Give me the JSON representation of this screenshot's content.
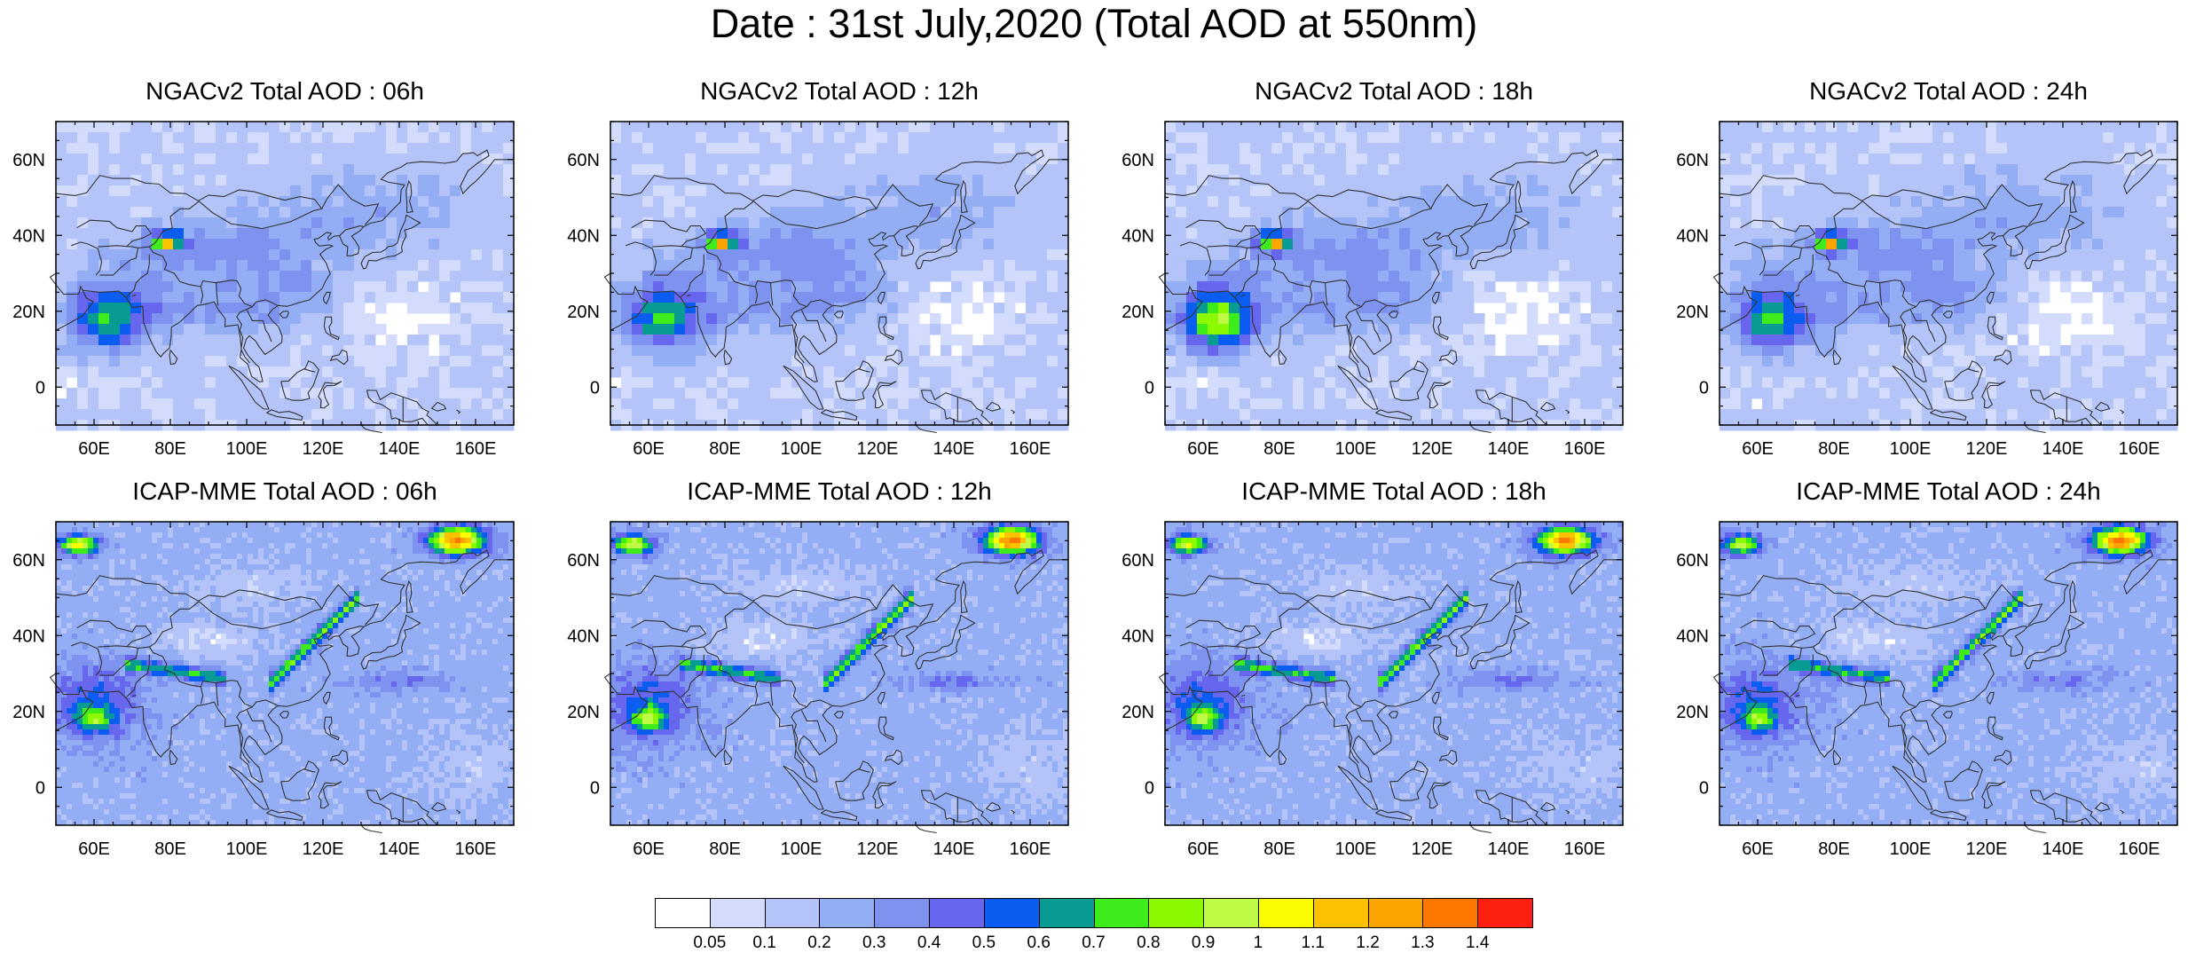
{
  "title": "Date : 31st July,2020 (Total AOD at 550nm)",
  "panels": [
    {
      "label": "NGACv2 Total AOD : 06h",
      "model": "NGACv2"
    },
    {
      "label": "NGACv2 Total AOD : 12h",
      "model": "NGACv2"
    },
    {
      "label": "NGACv2 Total AOD : 18h",
      "model": "NGACv2"
    },
    {
      "label": "NGACv2 Total AOD : 24h",
      "model": "NGACv2"
    },
    {
      "label": "ICAP-MME Total AOD : 06h",
      "model": "ICAP-MME"
    },
    {
      "label": "ICAP-MME Total AOD : 12h",
      "model": "ICAP-MME"
    },
    {
      "label": "ICAP-MME Total AOD : 18h",
      "model": "ICAP-MME"
    },
    {
      "label": "ICAP-MME Total AOD : 24h",
      "model": "ICAP-MME"
    }
  ],
  "map": {
    "lon_range": [
      50,
      170
    ],
    "lat_range": [
      -10,
      70
    ],
    "lon_ticks": [
      "60E",
      "80E",
      "100E",
      "120E",
      "140E",
      "160E"
    ],
    "lon_tick_values": [
      60,
      80,
      100,
      120,
      140,
      160
    ],
    "lat_ticks": [
      "0",
      "20N",
      "40N",
      "60N"
    ],
    "lat_tick_values": [
      0,
      20,
      40,
      60
    ]
  },
  "colorbar": {
    "levels": [
      "0.05",
      "0.1",
      "0.2",
      "0.3",
      "0.4",
      "0.5",
      "0.6",
      "0.7",
      "0.8",
      "0.9",
      "1",
      "1.1",
      "1.2",
      "1.3",
      "1.4"
    ],
    "colors": [
      "#ffffff",
      "#d3dcfc",
      "#b4c4f8",
      "#93aef5",
      "#7e93f0",
      "#6666ee",
      "#0a5df0",
      "#079b93",
      "#3fec1b",
      "#8bfa00",
      "#befa46",
      "#fcfc00",
      "#fcc200",
      "#fca400",
      "#fc7800",
      "#fc2010"
    ]
  },
  "colors": {
    "coastline": "#333333",
    "frame": "#000000"
  }
}
